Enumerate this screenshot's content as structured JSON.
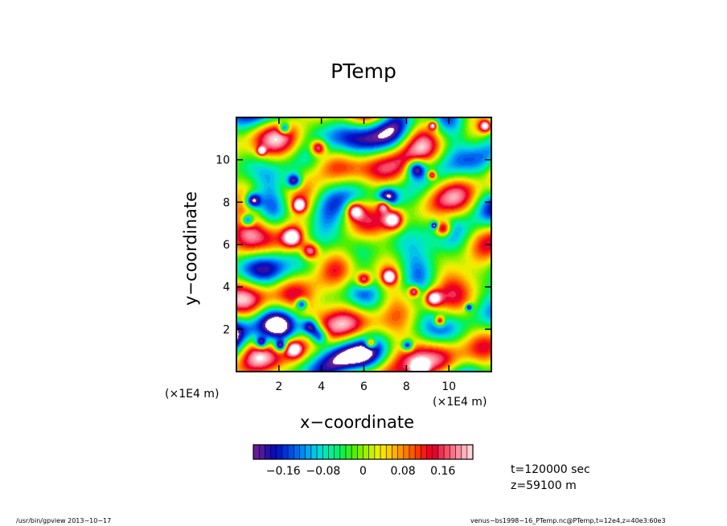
{
  "chart_data": {
    "type": "heatmap",
    "title": "PTemp",
    "xlabel": "x−coordinate",
    "ylabel": "y−coordinate",
    "x_unit": "(×1E4 m)",
    "y_unit": "(×1E4 m)",
    "xlim": [
      0,
      12
    ],
    "ylim": [
      0,
      12
    ],
    "x_ticks": [
      2,
      4,
      6,
      8,
      10
    ],
    "y_ticks": [
      2,
      4,
      6,
      8,
      10
    ],
    "x_tick_labels": [
      "2",
      "4",
      "6",
      "8",
      "10"
    ],
    "y_tick_labels": [
      "2",
      "4",
      "6",
      "8",
      "10"
    ],
    "colorbar": {
      "range": [
        -0.22,
        0.22
      ],
      "step": 0.01,
      "ticks": [
        -0.16,
        -0.08,
        0,
        0.08,
        0.16
      ],
      "tick_labels": [
        "−0.16",
        "−0.08",
        "0",
        "0.08",
        "0.16"
      ],
      "colors": [
        "#6a1b9a",
        "#4a1a9a",
        "#2a0fa8",
        "#0c0cb4",
        "#0018c8",
        "#0032d8",
        "#004ce6",
        "#0068f0",
        "#0088f4",
        "#00a8f0",
        "#00c4e8",
        "#00dcd8",
        "#00e8b8",
        "#00f098",
        "#00f070",
        "#10f048",
        "#30f020",
        "#50f000",
        "#78f000",
        "#a0f000",
        "#c8f000",
        "#e8f000",
        "#f8e400",
        "#ffcc00",
        "#ffb000",
        "#ff9400",
        "#ff7800",
        "#ff5800",
        "#ff3800",
        "#f81818",
        "#f00020",
        "#e80030",
        "#f03050",
        "#f85068",
        "#ff7088",
        "#ff90a0",
        "#ffb0b8",
        "#ffd0d4"
      ]
    },
    "grid": false,
    "annotations": [
      "t=120000 sec",
      "z=59100 m"
    ]
  },
  "footer": {
    "left": "/usr/bin/gpview   2013−10−17",
    "right": "venus−bs1998−16_PTemp.nc@PTemp,t=12e4,z=40e3:60e3"
  }
}
